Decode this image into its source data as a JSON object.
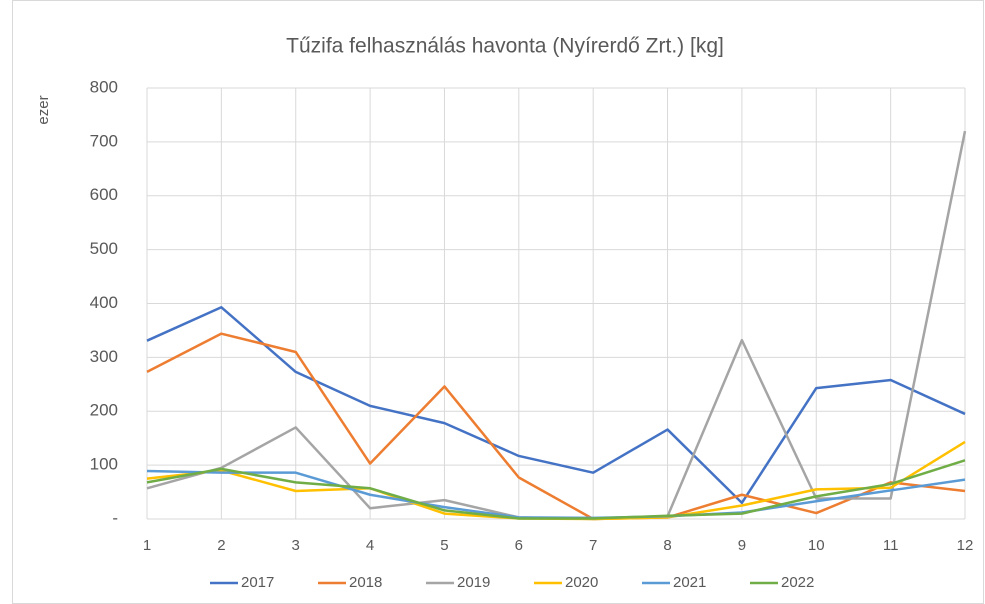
{
  "chart_data": {
    "type": "line",
    "title": "Tűzifa felhasználás havonta (Nyírerdő Zrt.) [kg]",
    "y_label": "ezer",
    "x": [
      1,
      2,
      3,
      4,
      5,
      6,
      7,
      8,
      9,
      10,
      11,
      12
    ],
    "xlim": [
      1,
      12
    ],
    "xticks": [
      1,
      2,
      3,
      4,
      5,
      6,
      7,
      8,
      9,
      10,
      11,
      12
    ],
    "ylim": [
      0,
      800
    ],
    "yticks": [
      {
        "value": 0,
        "label": "-"
      },
      100,
      200,
      300,
      400,
      500,
      600,
      700,
      800
    ],
    "grid": true,
    "legend": "bottom",
    "series": [
      {
        "name": "2017",
        "color": "#4472c4",
        "values": [
          331,
          393,
          273,
          210,
          178,
          117,
          86,
          166,
          30,
          243,
          258,
          195
        ]
      },
      {
        "name": "2018",
        "color": "#ed7d31",
        "values": [
          273,
          344,
          310,
          103,
          246,
          77,
          0,
          3,
          45,
          11,
          68,
          52
        ]
      },
      {
        "name": "2019",
        "color": "#a5a5a5",
        "values": [
          57,
          95,
          170,
          20,
          35,
          3,
          0,
          5,
          332,
          38,
          38,
          720
        ]
      },
      {
        "name": "2020",
        "color": "#ffc000",
        "values": [
          75,
          90,
          52,
          57,
          10,
          1,
          0,
          3,
          25,
          55,
          58,
          143
        ]
      },
      {
        "name": "2021",
        "color": "#5b9bd5",
        "values": [
          89,
          86,
          86,
          45,
          22,
          3,
          2,
          5,
          12,
          33,
          53,
          73
        ]
      },
      {
        "name": "2022",
        "color": "#70ad47",
        "values": [
          68,
          93,
          68,
          57,
          16,
          1,
          1,
          6,
          10,
          42,
          65,
          109
        ]
      }
    ]
  }
}
